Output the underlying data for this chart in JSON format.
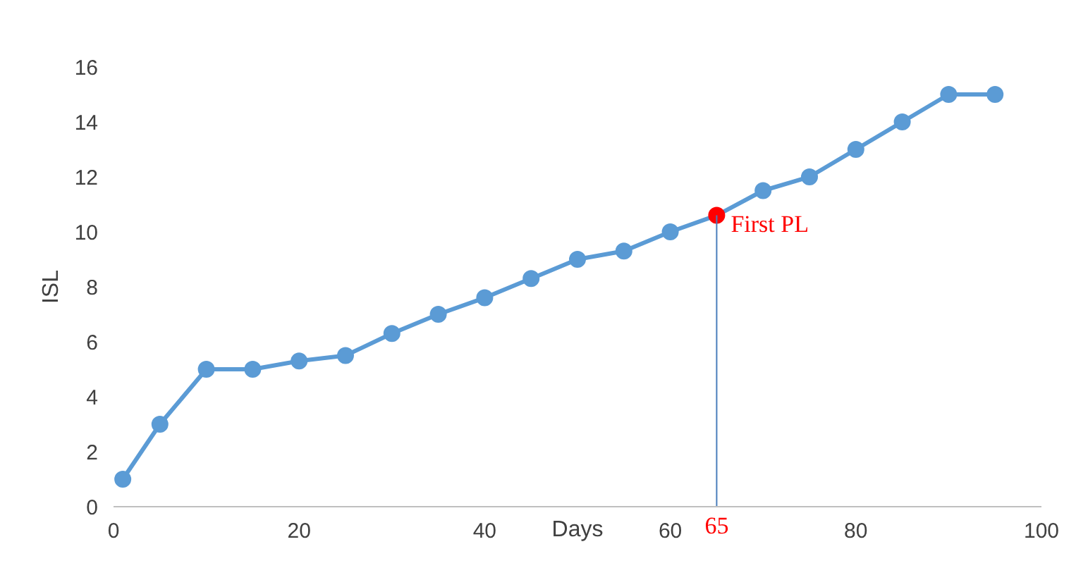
{
  "chart_data": {
    "type": "line",
    "xlabel": "Days",
    "ylabel": "ISL",
    "x": [
      1,
      5,
      10,
      15,
      20,
      25,
      30,
      35,
      40,
      45,
      50,
      55,
      60,
      65,
      70,
      75,
      80,
      85,
      90,
      95
    ],
    "series": [
      {
        "color": "#5b9bd5",
        "values": [
          1,
          3,
          5,
          5,
          5.3,
          5.5,
          6.3,
          7,
          7.6,
          8.3,
          9,
          9.3,
          10,
          10.6,
          11.5,
          12,
          13,
          14,
          15,
          15
        ],
        "colors": [
          "#5b9bd5",
          "#5b9bd5",
          "#5b9bd5",
          "#5b9bd5",
          "#5b9bd5",
          "#5b9bd5",
          "#5b9bd5",
          "#5b9bd5",
          "#5b9bd5",
          "#5b9bd5",
          "#5b9bd5",
          "#5b9bd5",
          "#5b9bd5",
          "#ff0000",
          "#5b9bd5",
          "#5b9bd5",
          "#5b9bd5",
          "#5b9bd5",
          "#5b9bd5",
          "#5b9bd5"
        ]
      }
    ],
    "xlim": [
      0,
      100
    ],
    "xticks": [
      0,
      20,
      40,
      60,
      80,
      100
    ],
    "ylim": [
      0,
      16
    ],
    "yticks": [
      0,
      2,
      4,
      6,
      8,
      10,
      12,
      14,
      16
    ],
    "ref_lines": [
      {
        "axis": "x",
        "value": 65,
        "label": "65",
        "color": "#4a7ebb"
      }
    ],
    "annotations": [
      {
        "text": "First PL",
        "x": 65,
        "y": 10.6
      }
    ],
    "marker": "circle",
    "grid": false
  }
}
